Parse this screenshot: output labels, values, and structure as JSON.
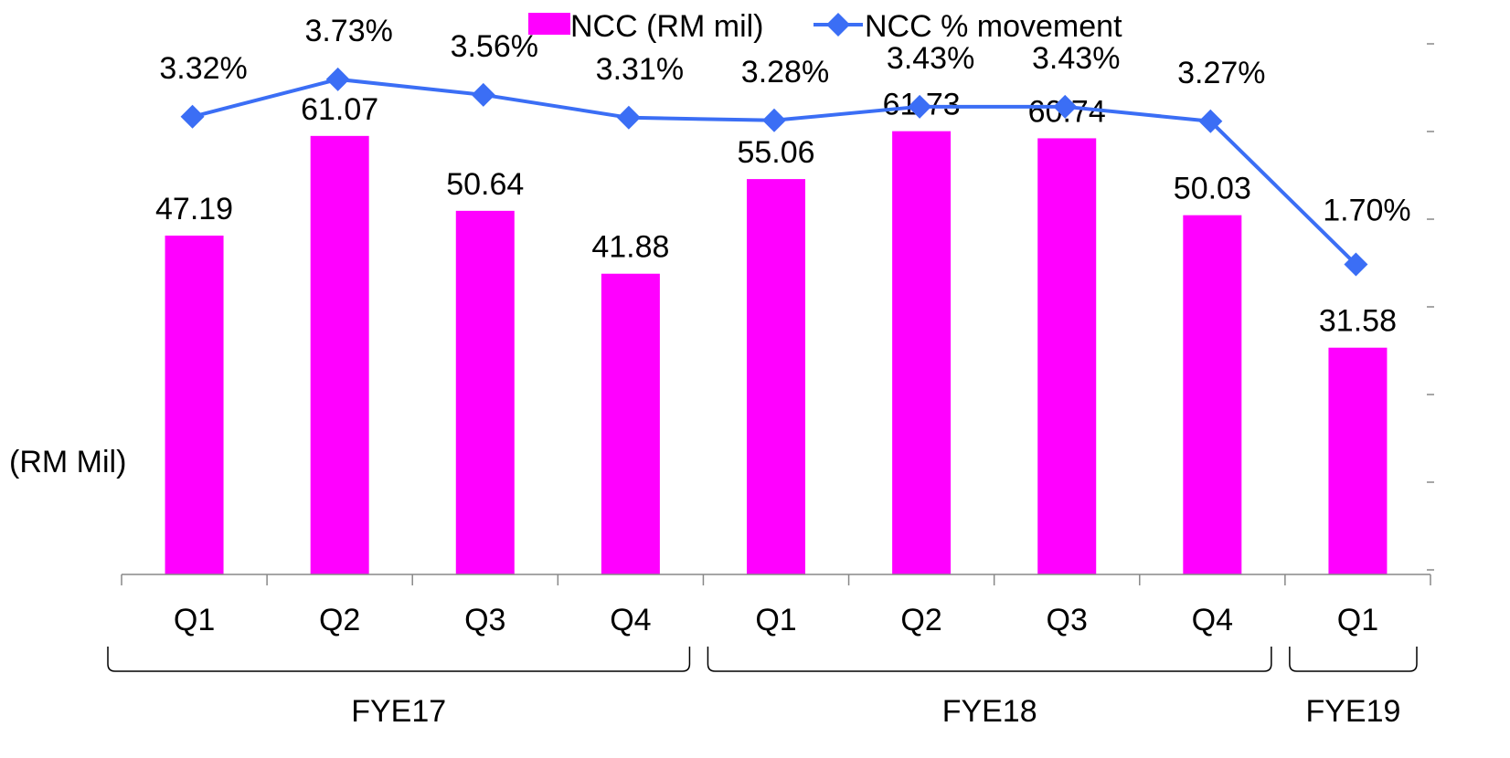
{
  "chart_data": {
    "type": "bar",
    "categories": [
      "Q1",
      "Q2",
      "Q3",
      "Q4",
      "Q1",
      "Q2",
      "Q3",
      "Q4",
      "Q1"
    ],
    "groups": [
      {
        "label": "FYE17",
        "from": 0,
        "to": 3
      },
      {
        "label": "FYE18",
        "from": 4,
        "to": 7
      },
      {
        "label": "FYE19",
        "from": 8,
        "to": 8
      }
    ],
    "series": [
      {
        "name": "NCC (RM mil)",
        "type": "bar",
        "axis": "left",
        "color": "#ff00ff",
        "values": [
          47.19,
          61.07,
          50.64,
          41.88,
          55.06,
          61.73,
          60.74,
          50.03,
          31.58
        ],
        "labels": [
          "47.19",
          "61.07",
          "50.64",
          "41.88",
          "55.06",
          "61.73",
          "60.74",
          "50.03",
          "31.58"
        ]
      },
      {
        "name": "NCC % movement",
        "type": "line",
        "axis": "right",
        "color": "#3b6ef5",
        "marker": "diamond",
        "values": [
          3.32,
          3.73,
          3.56,
          3.31,
          3.28,
          3.43,
          3.43,
          3.27,
          1.7
        ],
        "labels": [
          "3.32%",
          "3.73%",
          "3.56%",
          "3.31%",
          "3.28%",
          "3.43%",
          "3.43%",
          "3.27%",
          "1.70%"
        ]
      }
    ],
    "ylabel": "(RM Mil)",
    "ylim": [
      0,
      80
    ],
    "y2lim": [
      -1.7,
      4.6
    ],
    "legend": "top-center",
    "grid": false
  }
}
